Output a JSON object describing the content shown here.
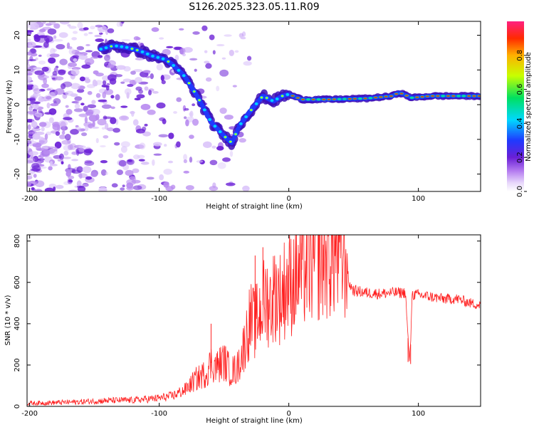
{
  "figure_title": "S126.2025.323.05.11.R09",
  "chart_data": [
    {
      "type": "heatmap",
      "title": "S126.2025.323.05.11.R09",
      "xlabel": "Height of straight line (km)",
      "ylabel": "Frequency (Hz)",
      "xlim": [
        -202,
        148
      ],
      "ylim": [
        -25,
        24
      ],
      "xticks": [
        -200,
        -100,
        0,
        100
      ],
      "yticks": [
        -20,
        -10,
        0,
        10,
        20
      ],
      "colorbar": {
        "label": "Normalized spectral amplitude",
        "range": [
          0,
          1
        ],
        "ticks": [
          "0.0",
          "0.2",
          "0.4",
          "0.6",
          "0.8"
        ]
      },
      "ridge": {
        "description": "dominant frequency ridge vs height",
        "x": [
          -145,
          -135,
          -125,
          -115,
          -105,
          -95,
          -88,
          -80,
          -70,
          -60,
          -50,
          -44,
          -38,
          -30,
          -20,
          -12,
          -5,
          0,
          10,
          30,
          60,
          80,
          85,
          95,
          110,
          148
        ],
        "y": [
          16,
          17,
          16.5,
          15.5,
          14,
          13,
          11,
          8,
          2,
          -5,
          -9,
          -11,
          -6,
          -2,
          2.5,
          1,
          2.5,
          3,
          1.5,
          1.5,
          1.8,
          2.5,
          3.5,
          2,
          2.5,
          2.5
        ]
      }
    },
    {
      "type": "line",
      "xlabel": "Height of straight line (km)",
      "ylabel": "SNR (10 * v/v)",
      "xlim": [
        -202,
        148
      ],
      "ylim": [
        0,
        830
      ],
      "xticks": [
        -200,
        -100,
        0,
        100
      ],
      "yticks": [
        0,
        200,
        400,
        600,
        800
      ],
      "series": [
        {
          "name": "SNR",
          "color": "#ff2020",
          "x": [
            -202,
            -180,
            -160,
            -140,
            -120,
            -100,
            -90,
            -80,
            -72,
            -64,
            -60,
            -56,
            -50,
            -45,
            -40,
            -35,
            -30,
            -26,
            -22,
            -18,
            -14,
            -10,
            -6,
            -2,
            0,
            5,
            10,
            15,
            20,
            25,
            30,
            35,
            40,
            45,
            46,
            50,
            60,
            70,
            80,
            90,
            93,
            94,
            95,
            100,
            110,
            120,
            130,
            140,
            148
          ],
          "values": [
            15,
            18,
            22,
            28,
            30,
            40,
            50,
            80,
            130,
            160,
            210,
            190,
            220,
            170,
            180,
            280,
            420,
            400,
            460,
            520,
            500,
            560,
            520,
            600,
            590,
            620,
            660,
            690,
            720,
            730,
            740,
            740,
            730,
            720,
            600,
            560,
            550,
            545,
            550,
            550,
            220,
            300,
            540,
            540,
            530,
            520,
            520,
            500,
            490
          ]
        }
      ],
      "spikes": [
        {
          "x": -60,
          "value": 400
        },
        {
          "x": -26,
          "value": 730
        },
        {
          "x": -20,
          "value": 770
        },
        {
          "x": 10,
          "value": 790
        },
        {
          "x": 19,
          "value": 830
        },
        {
          "x": 92,
          "value": 215
        },
        {
          "x": 94,
          "value": 205
        }
      ]
    }
  ],
  "colors": {
    "snr_line": "#ff2020",
    "scatter_light": "#b98cf0",
    "scatter_dark": "#6a1fd6"
  }
}
